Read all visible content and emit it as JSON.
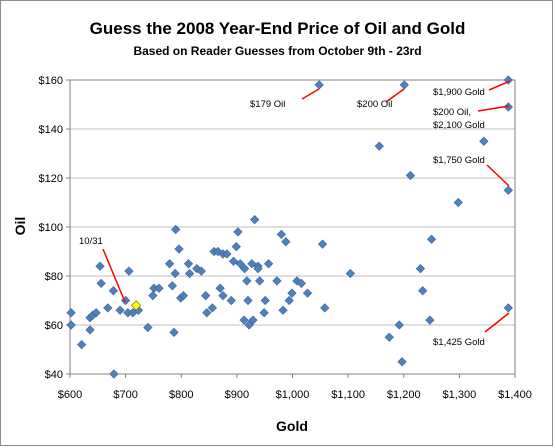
{
  "chart_data": {
    "type": "scatter",
    "title": "Guess the 2008 Year-End Price of Oil and Gold",
    "subtitle": "Based on Reader Guesses from October 9th - 23rd",
    "xlabel": "Gold",
    "ylabel": "Oil",
    "xlim": [
      600,
      1400
    ],
    "ylim": [
      40,
      160
    ],
    "xticks": [
      600,
      700,
      800,
      900,
      1000,
      1100,
      1200,
      1300,
      1400
    ],
    "xtick_labels": [
      "$600",
      "$700",
      "$800",
      "$900",
      "$1,000",
      "$1,100",
      "$1,200",
      "$1,300",
      "$1,400"
    ],
    "yticks": [
      40,
      60,
      80,
      100,
      120,
      140,
      160
    ],
    "ytick_labels": [
      "$40",
      "$60",
      "$80",
      "$100",
      "$120",
      "$140",
      "$160"
    ],
    "grid": "horizontal",
    "legend": "none",
    "colors": {
      "points": "#4f81bd",
      "highlight": "#ffff00",
      "callout": "#ff0000",
      "gridline": "#bfbfbf"
    },
    "points": [
      [
        602,
        65
      ],
      [
        602,
        60
      ],
      [
        621,
        52
      ],
      [
        636,
        58
      ],
      [
        636,
        63
      ],
      [
        641,
        64
      ],
      [
        647,
        65
      ],
      [
        654,
        84
      ],
      [
        656,
        77
      ],
      [
        668,
        67
      ],
      [
        678,
        74
      ],
      [
        679,
        40
      ],
      [
        690,
        66
      ],
      [
        700,
        70
      ],
      [
        704,
        65
      ],
      [
        706,
        82
      ],
      [
        713,
        65
      ],
      [
        723,
        66
      ],
      [
        740,
        59
      ],
      [
        749,
        72
      ],
      [
        751,
        75
      ],
      [
        760,
        75
      ],
      [
        779,
        85
      ],
      [
        784,
        76
      ],
      [
        789,
        81
      ],
      [
        787,
        57
      ],
      [
        790,
        99
      ],
      [
        796,
        91
      ],
      [
        799,
        71
      ],
      [
        804,
        72
      ],
      [
        813,
        85
      ],
      [
        815,
        81
      ],
      [
        828,
        83
      ],
      [
        836,
        82
      ],
      [
        844,
        72
      ],
      [
        846,
        65
      ],
      [
        856,
        67
      ],
      [
        859,
        90
      ],
      [
        866,
        90
      ],
      [
        870,
        75
      ],
      [
        875,
        89
      ],
      [
        875,
        72
      ],
      [
        882,
        89
      ],
      [
        890,
        70
      ],
      [
        894,
        86
      ],
      [
        899,
        92
      ],
      [
        902,
        98
      ],
      [
        906,
        85
      ],
      [
        913,
        62
      ],
      [
        914,
        83
      ],
      [
        918,
        78
      ],
      [
        920,
        70
      ],
      [
        922,
        60
      ],
      [
        927,
        85
      ],
      [
        929,
        62
      ],
      [
        932,
        103
      ],
      [
        938,
        84
      ],
      [
        938,
        83
      ],
      [
        941,
        78
      ],
      [
        949,
        65
      ],
      [
        951,
        70
      ],
      [
        957,
        85
      ],
      [
        972,
        78
      ],
      [
        980,
        97
      ],
      [
        983,
        66
      ],
      [
        988,
        94
      ],
      [
        994,
        70
      ],
      [
        999,
        73
      ],
      [
        1008,
        78
      ],
      [
        1016,
        77
      ],
      [
        1027,
        73
      ],
      [
        1054,
        93
      ],
      [
        1058,
        67
      ],
      [
        1104,
        81
      ],
      [
        1174,
        55
      ],
      [
        1192,
        60
      ],
      [
        1197,
        45
      ],
      [
        1212,
        121
      ],
      [
        1230,
        83
      ],
      [
        1234,
        74
      ],
      [
        1247,
        62
      ],
      [
        1250,
        95
      ],
      [
        1298,
        110
      ],
      [
        1344,
        135
      ],
      [
        1156,
        133
      ],
      [
        1048,
        158
      ],
      [
        1201,
        158
      ],
      [
        1388,
        160
      ],
      [
        1388,
        149
      ],
      [
        1388,
        115
      ],
      [
        1388,
        67
      ]
    ],
    "highlight": {
      "x": 719,
      "y": 68,
      "label": "10/31"
    },
    "annotations": [
      {
        "text": "$179 Oil"
      },
      {
        "text": "$200 Oil"
      },
      {
        "text": "$1,900 Gold"
      },
      {
        "text": "$200 Oil,"
      },
      {
        "text": "$2,100 Gold"
      },
      {
        "text": "$1,750 Gold"
      },
      {
        "text": "$1,425 Gold"
      }
    ]
  }
}
